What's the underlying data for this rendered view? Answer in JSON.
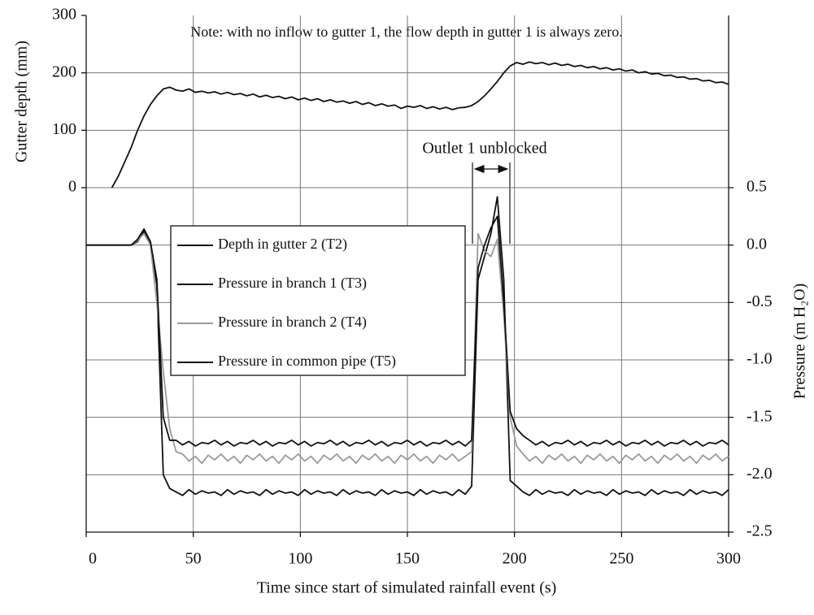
{
  "chart_data": {
    "type": "line",
    "xlabel": "Time since start of simulated rainfall event (s)",
    "ylabel": "Gutter depth (mm)",
    "y2label": "Pressure (m H₂O)",
    "annotations": [
      "Note: with no inflow to gutter 1, the flow depth in gutter 1 is always zero.",
      "Outlet 1 unblocked"
    ],
    "xlim": [
      0,
      300
    ],
    "xticks": [
      0,
      50,
      100,
      150,
      200,
      250,
      300
    ],
    "ylim": [
      -600,
      300
    ],
    "yticks": [
      0,
      100,
      200,
      300
    ],
    "y2lim": [
      -2.5,
      2.0
    ],
    "y2ticks": [
      0.5,
      {
        "value": 0,
        "label": "0.0"
      },
      -0.5,
      {
        "value": -1,
        "label": "-1.0"
      },
      -1.5,
      {
        "value": -2,
        "label": "-2.0"
      },
      -2.5
    ],
    "grid": true,
    "x": [
      0,
      3,
      6,
      9,
      12,
      15,
      18,
      21,
      24,
      27,
      30,
      33,
      36,
      39,
      42,
      45,
      48,
      51,
      54,
      57,
      60,
      63,
      66,
      69,
      72,
      75,
      78,
      81,
      84,
      87,
      90,
      93,
      96,
      99,
      102,
      105,
      108,
      111,
      114,
      117,
      120,
      123,
      126,
      129,
      132,
      135,
      138,
      141,
      144,
      147,
      150,
      153,
      156,
      159,
      162,
      165,
      168,
      171,
      174,
      177,
      180,
      183,
      186,
      189,
      192,
      195,
      198,
      201,
      204,
      207,
      210,
      213,
      216,
      219,
      222,
      225,
      228,
      231,
      234,
      237,
      240,
      243,
      246,
      249,
      252,
      255,
      258,
      261,
      264,
      267,
      270,
      273,
      276,
      279,
      282,
      285,
      288,
      291,
      294,
      297,
      300
    ],
    "series": [
      {
        "name": "Depth in gutter 2 (T2)",
        "color": "#111111",
        "axis": "y",
        "values": [
          null,
          null,
          null,
          null,
          0,
          20,
          45,
          70,
          100,
          125,
          145,
          160,
          172,
          175,
          170,
          168,
          172,
          166,
          168,
          165,
          167,
          163,
          166,
          162,
          164,
          160,
          163,
          158,
          161,
          157,
          159,
          155,
          158,
          153,
          156,
          152,
          155,
          150,
          153,
          149,
          151,
          147,
          150,
          145,
          148,
          143,
          146,
          142,
          144,
          138,
          142,
          140,
          143,
          138,
          141,
          137,
          140,
          136,
          139,
          140,
          143,
          150,
          160,
          172,
          185,
          200,
          212,
          218,
          215,
          219,
          216,
          218,
          214,
          217,
          213,
          215,
          211,
          213,
          209,
          211,
          207,
          209,
          205,
          207,
          203,
          205,
          200,
          202,
          198,
          199,
          195,
          196,
          192,
          193,
          189,
          190,
          186,
          187,
          183,
          184,
          180
        ]
      },
      {
        "name": "Pressure in branch 1 (T3)",
        "color": "#111111",
        "axis": "y2",
        "values": [
          0,
          0,
          0,
          0,
          0,
          0,
          0,
          0,
          0.03,
          0.12,
          0.02,
          -0.35,
          -2.0,
          -2.12,
          -2.15,
          -2.18,
          -2.13,
          -2.17,
          -2.14,
          -2.16,
          -2.15,
          -2.18,
          -2.13,
          -2.17,
          -2.14,
          -2.16,
          -2.15,
          -2.18,
          -2.13,
          -2.17,
          -2.14,
          -2.16,
          -2.15,
          -2.18,
          -2.13,
          -2.17,
          -2.14,
          -2.16,
          -2.15,
          -2.18,
          -2.13,
          -2.17,
          -2.14,
          -2.16,
          -2.15,
          -2.18,
          -2.13,
          -2.17,
          -2.14,
          -2.16,
          -2.15,
          -2.18,
          -2.13,
          -2.17,
          -2.14,
          -2.16,
          -2.15,
          -2.18,
          -2.13,
          -2.17,
          -2.1,
          -0.3,
          -0.1,
          0.1,
          0.42,
          -0.3,
          -2.05,
          -2.1,
          -2.15,
          -2.18,
          -2.13,
          -2.17,
          -2.14,
          -2.16,
          -2.15,
          -2.18,
          -2.13,
          -2.17,
          -2.14,
          -2.16,
          -2.15,
          -2.18,
          -2.13,
          -2.17,
          -2.14,
          -2.16,
          -2.15,
          -2.18,
          -2.13,
          -2.17,
          -2.14,
          -2.16,
          -2.15,
          -2.18,
          -2.13,
          -2.17,
          -2.14,
          -2.16,
          -2.15,
          -2.18,
          -2.13
        ]
      },
      {
        "name": "Pressure in branch 2 (T4)",
        "color": "#9a9a9a",
        "axis": "y2",
        "values": [
          0,
          0,
          0,
          0,
          0,
          0,
          0,
          0,
          0.04,
          0.1,
          0.0,
          -0.5,
          -1.1,
          -1.6,
          -1.8,
          -1.82,
          -1.88,
          -1.84,
          -1.9,
          -1.83,
          -1.87,
          -1.82,
          -1.88,
          -1.84,
          -1.9,
          -1.83,
          -1.87,
          -1.82,
          -1.88,
          -1.84,
          -1.9,
          -1.83,
          -1.87,
          -1.82,
          -1.88,
          -1.84,
          -1.9,
          -1.83,
          -1.87,
          -1.82,
          -1.88,
          -1.84,
          -1.9,
          -1.83,
          -1.87,
          -1.82,
          -1.88,
          -1.84,
          -1.9,
          -1.83,
          -1.87,
          -1.82,
          -1.88,
          -1.84,
          -1.9,
          -1.83,
          -1.87,
          -1.82,
          -1.88,
          -1.84,
          -1.8,
          0.1,
          -0.05,
          -0.1,
          0.05,
          -0.6,
          -1.5,
          -1.75,
          -1.82,
          -1.88,
          -1.84,
          -1.9,
          -1.83,
          -1.87,
          -1.82,
          -1.88,
          -1.84,
          -1.9,
          -1.83,
          -1.87,
          -1.82,
          -1.88,
          -1.84,
          -1.9,
          -1.83,
          -1.87,
          -1.82,
          -1.88,
          -1.84,
          -1.9,
          -1.83,
          -1.87,
          -1.82,
          -1.88,
          -1.84,
          -1.9,
          -1.83,
          -1.87,
          -1.82,
          -1.88,
          -1.84
        ]
      },
      {
        "name": "Pressure in common pipe (T5)",
        "color": "#111111",
        "axis": "y2",
        "values": [
          0,
          0,
          0,
          0,
          0,
          0,
          0,
          0,
          0.05,
          0.14,
          0.03,
          -0.3,
          -1.5,
          -1.7,
          -1.7,
          -1.74,
          -1.71,
          -1.75,
          -1.72,
          -1.73,
          -1.7,
          -1.74,
          -1.71,
          -1.75,
          -1.72,
          -1.73,
          -1.7,
          -1.74,
          -1.71,
          -1.75,
          -1.72,
          -1.73,
          -1.7,
          -1.74,
          -1.71,
          -1.75,
          -1.72,
          -1.73,
          -1.7,
          -1.74,
          -1.71,
          -1.75,
          -1.72,
          -1.73,
          -1.7,
          -1.74,
          -1.71,
          -1.75,
          -1.72,
          -1.73,
          -1.7,
          -1.74,
          -1.71,
          -1.75,
          -1.72,
          -1.73,
          -1.7,
          -1.74,
          -1.71,
          -1.75,
          -1.7,
          -0.2,
          0.0,
          0.15,
          0.25,
          -0.5,
          -1.45,
          -1.6,
          -1.66,
          -1.7,
          -1.74,
          -1.71,
          -1.75,
          -1.72,
          -1.73,
          -1.7,
          -1.74,
          -1.71,
          -1.75,
          -1.72,
          -1.73,
          -1.7,
          -1.74,
          -1.71,
          -1.75,
          -1.72,
          -1.73,
          -1.7,
          -1.74,
          -1.71,
          -1.75,
          -1.72,
          -1.73,
          -1.7,
          -1.74,
          -1.71,
          -1.75,
          -1.72,
          -1.73,
          -1.7,
          -1.74
        ]
      }
    ]
  }
}
